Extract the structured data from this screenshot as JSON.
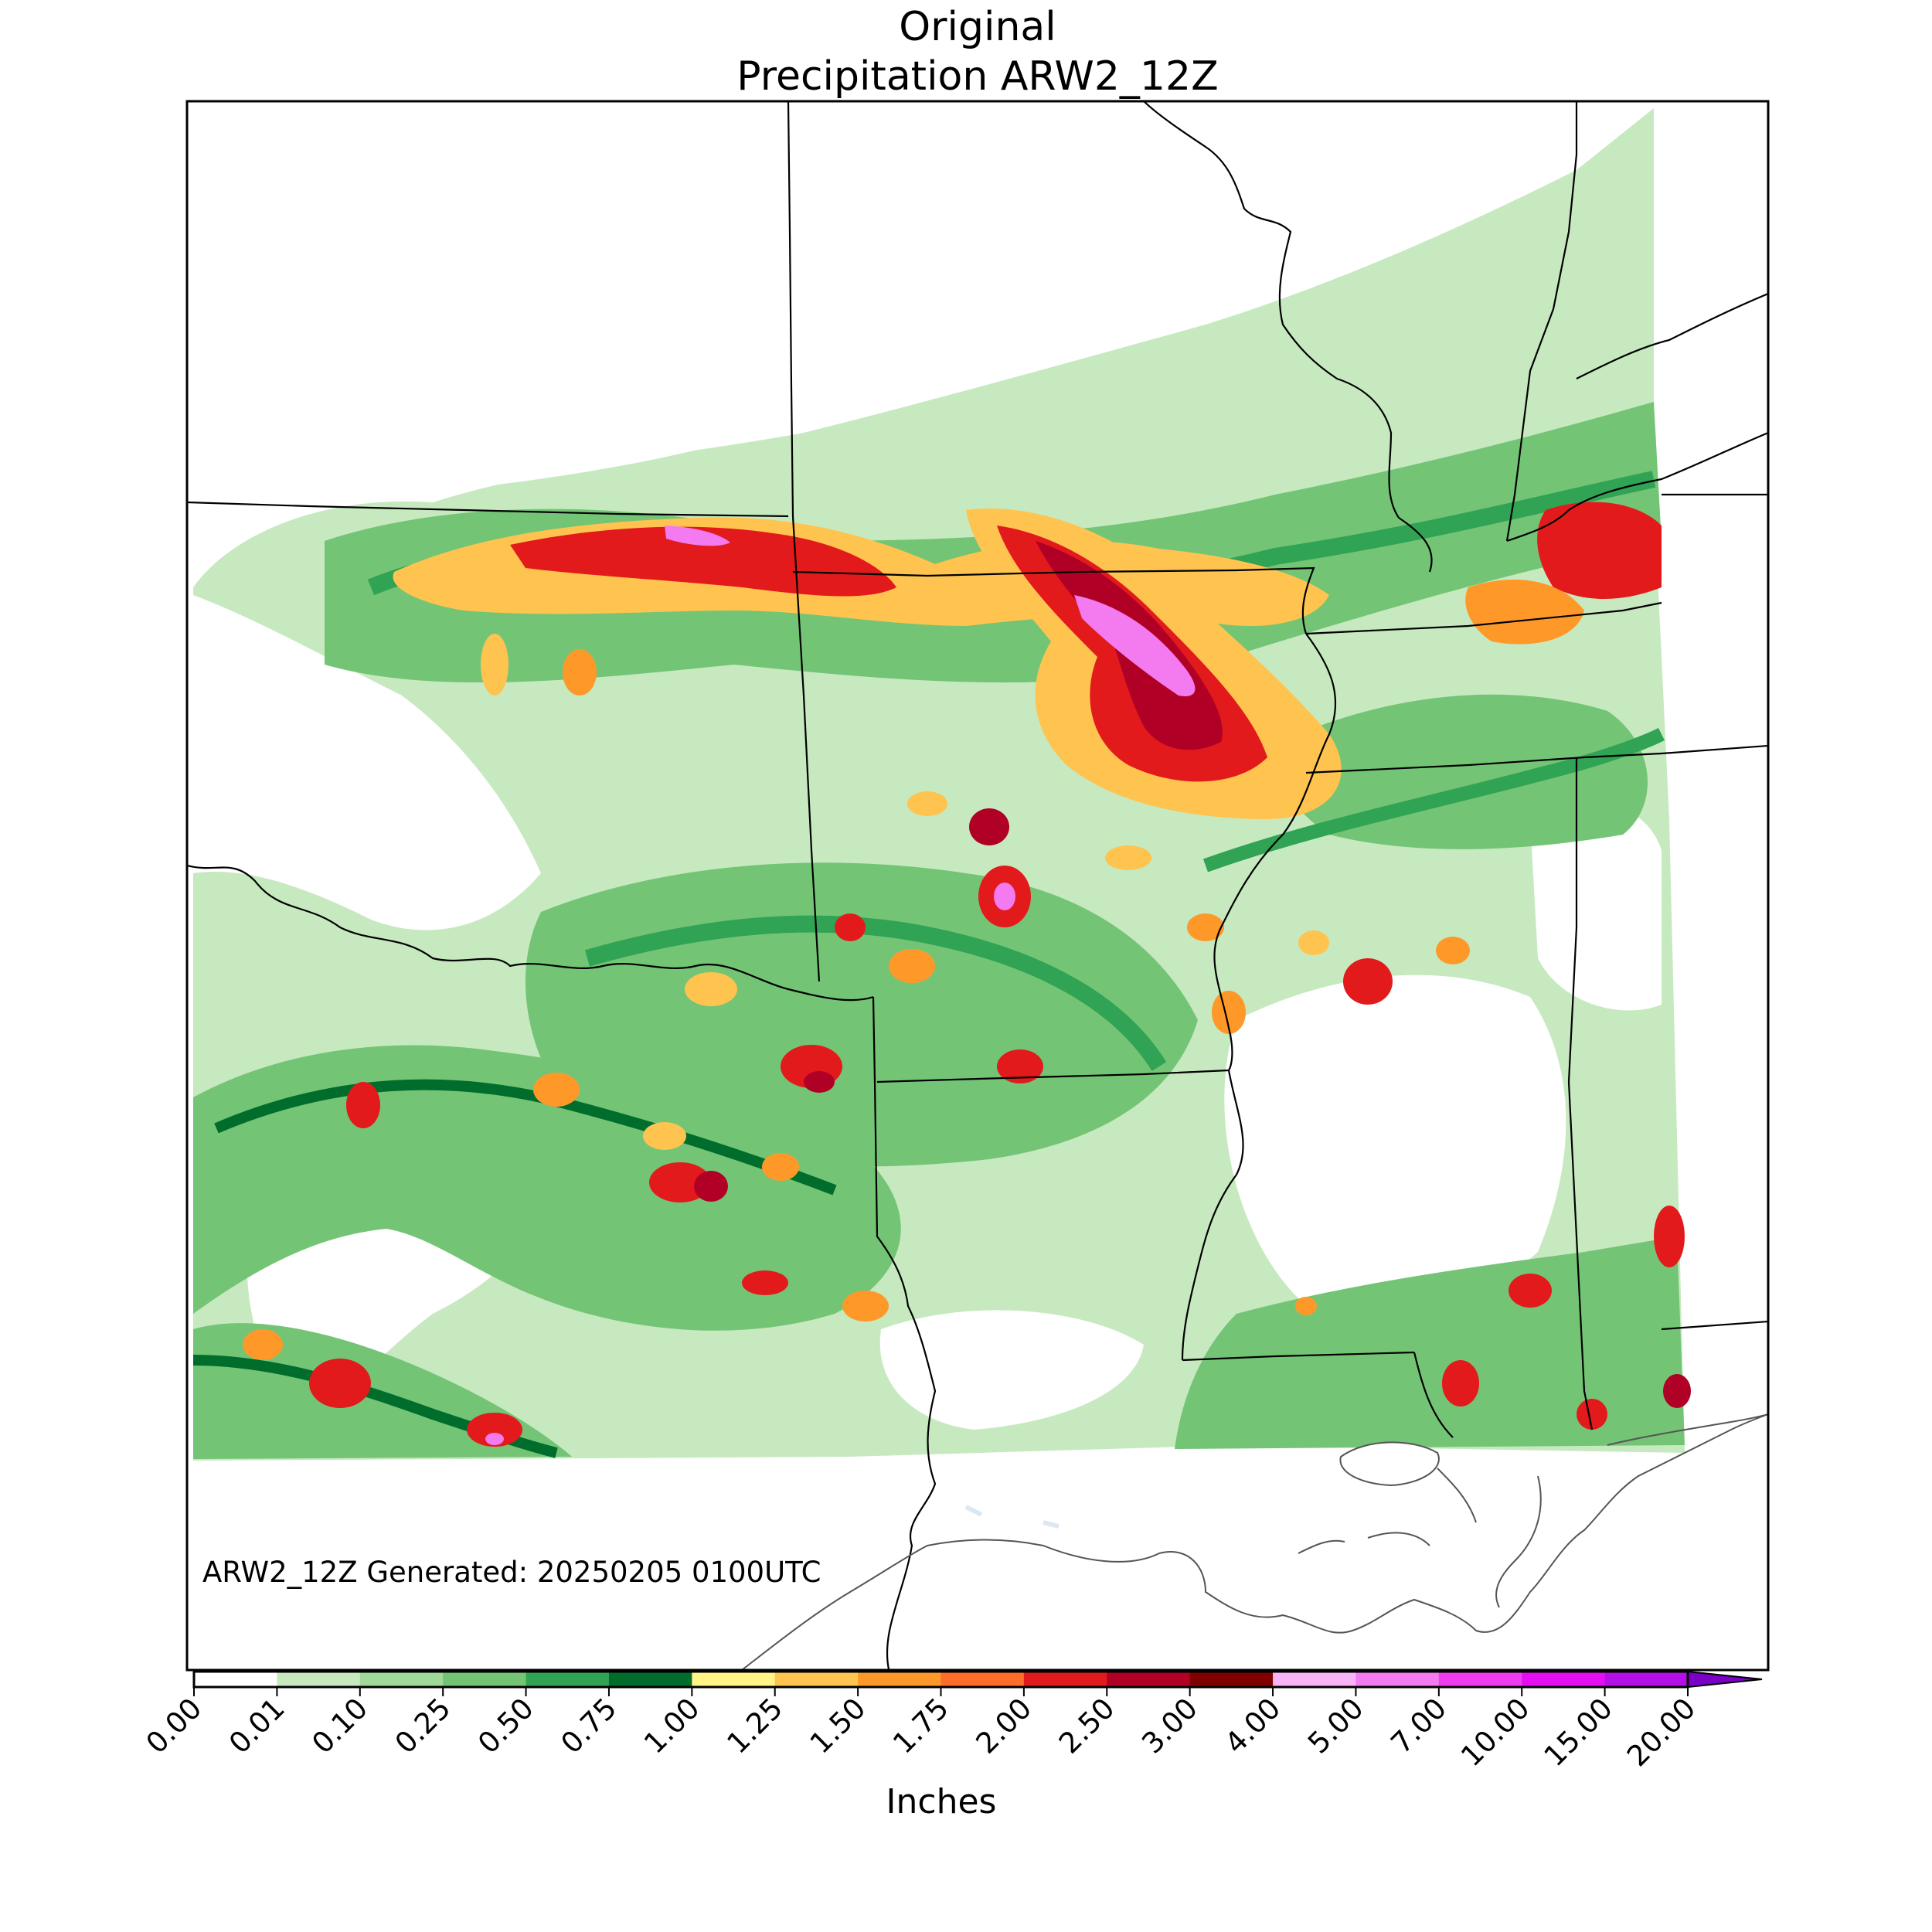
{
  "figure": {
    "title_line1": "Original",
    "title_line2": "Precipitation ARW2_12Z",
    "annotation": "ARW2_12Z Generated: 20250205 0100UTC"
  },
  "colorbar": {
    "label": "Inches",
    "extend": "max",
    "ticks": [
      "0.00",
      "0.01",
      "0.10",
      "0.25",
      "0.50",
      "0.75",
      "1.00",
      "1.25",
      "1.50",
      "1.75",
      "2.00",
      "2.50",
      "3.00",
      "4.00",
      "5.00",
      "7.00",
      "10.00",
      "15.00",
      "20.00"
    ],
    "colors": [
      "#ffffff",
      "#c7e9c0",
      "#a1d99b",
      "#74c476",
      "#31a354",
      "#006d2c",
      "#fff485",
      "#fec44f",
      "#fe9929",
      "#fe6d29",
      "#e31a1c",
      "#b10026",
      "#800000",
      "#f7b4f7",
      "#f47af0",
      "#f03cf0",
      "#e40ff0",
      "#b50fe8"
    ],
    "extend_color": "#7a00c8"
  }
}
